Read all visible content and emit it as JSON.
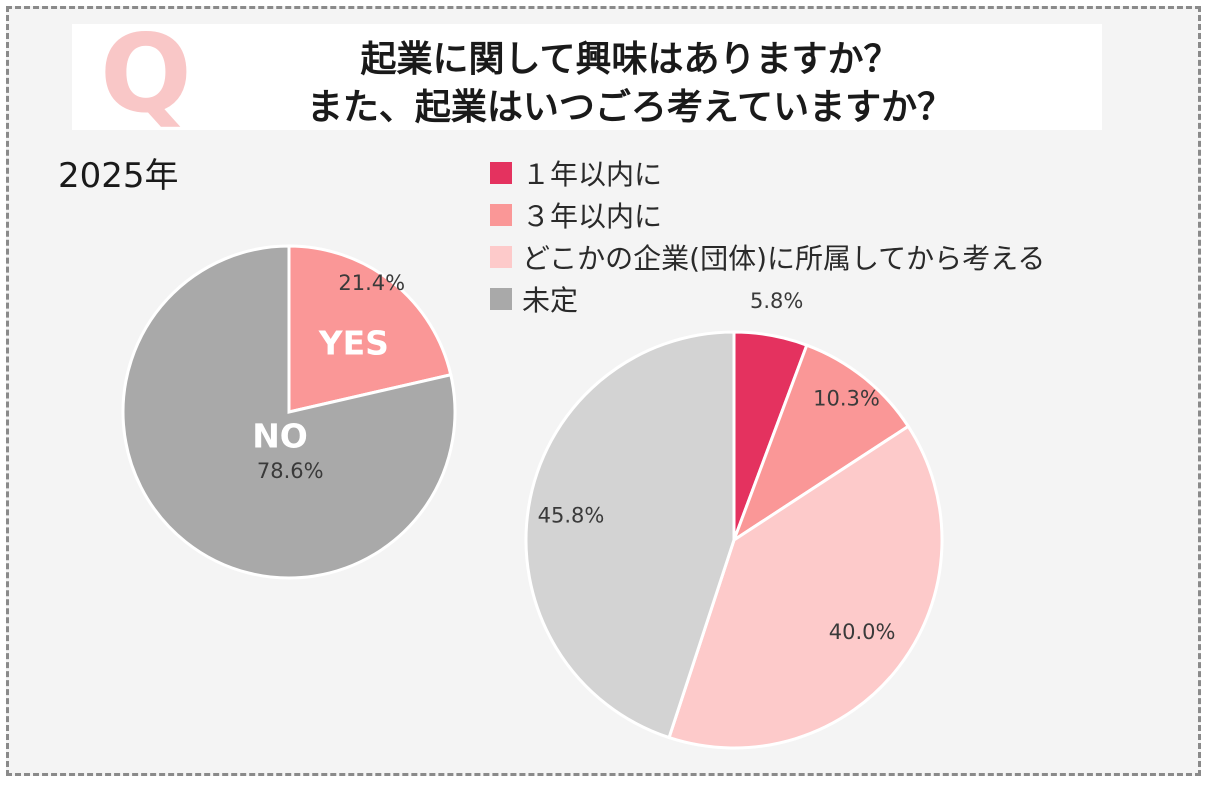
{
  "title": {
    "q_mark": "Q",
    "line1": "起業に関して興味はありますか？",
    "line2": "また、起業はいつごろ考えていますか？"
  },
  "year_label": "2025年",
  "legend": [
    {
      "label": "１年以内に",
      "color": "#e4325f"
    },
    {
      "label": "３年以内に",
      "color": "#fa9797"
    },
    {
      "label": "どこかの企業(団体)に所属してから考える",
      "color": "#fdcaca"
    },
    {
      "label": "未定",
      "color": "#a9a9a9"
    }
  ],
  "chart_data": [
    {
      "type": "pie",
      "labels": [
        "YES",
        "NO"
      ],
      "values": [
        21.4,
        78.6
      ],
      "value_labels": [
        "21.4%",
        "78.6%"
      ],
      "colors": [
        "#fa9797",
        "#a9a9a9"
      ]
    },
    {
      "type": "pie",
      "labels": [
        "１年以内に",
        "３年以内に",
        "どこかの企業(団体)に所属してから考える",
        "未定"
      ],
      "values": [
        5.8,
        10.3,
        40.0,
        45.8
      ],
      "value_labels": [
        "5.8%",
        "10.3%",
        "40.0%",
        "45.8%"
      ],
      "colors": [
        "#e4325f",
        "#fa9797",
        "#fdcaca",
        "#d3d3d3"
      ]
    }
  ]
}
